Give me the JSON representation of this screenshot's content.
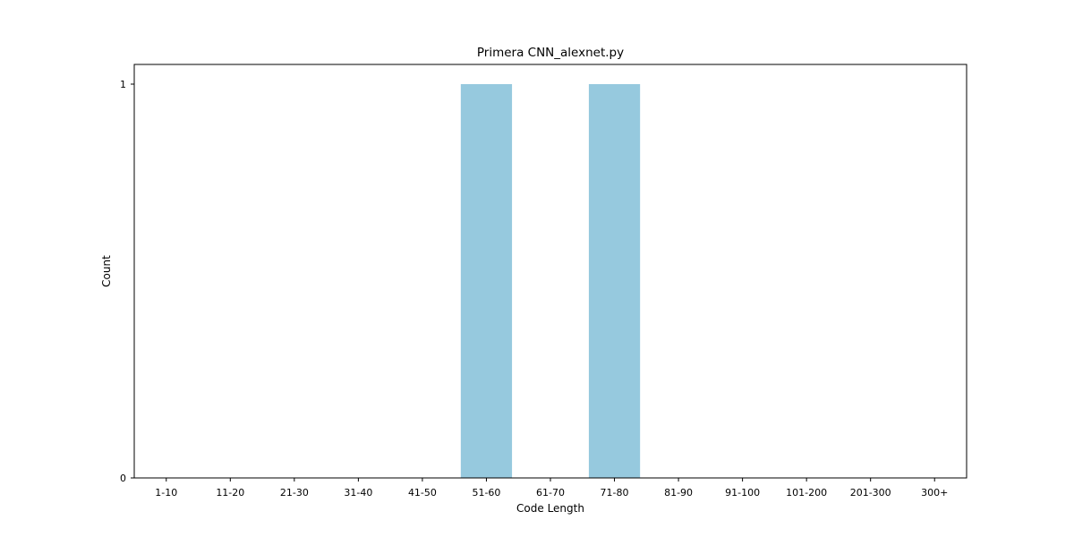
{
  "chart_data": {
    "type": "bar",
    "title": "Primera CNN_alexnet.py",
    "xlabel": "Code Length",
    "ylabel": "Count",
    "categories": [
      "1-10",
      "11-20",
      "21-30",
      "31-40",
      "41-50",
      "51-60",
      "61-70",
      "71-80",
      "81-90",
      "91-100",
      "101-200",
      "201-300",
      "300+"
    ],
    "values": [
      0,
      0,
      0,
      0,
      0,
      1,
      0,
      1,
      0,
      0,
      0,
      0,
      0
    ],
    "ylim": [
      0,
      1.05
    ],
    "yticks": [
      0,
      1
    ],
    "grid": false,
    "legend": "none",
    "bar_color": "#96c9de"
  }
}
